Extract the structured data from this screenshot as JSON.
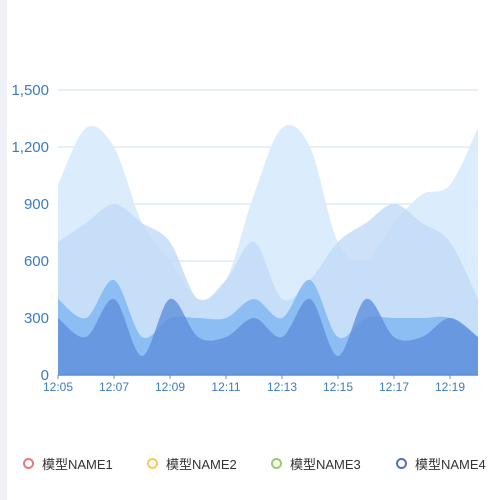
{
  "chart_data": {
    "type": "area",
    "title": "",
    "xlabel": "",
    "ylabel": "",
    "x": [
      "12:05",
      "12:06",
      "12:07",
      "12:08",
      "12:09",
      "12:10",
      "12:11",
      "12:12",
      "12:13",
      "12:14",
      "12:15",
      "12:16",
      "12:17",
      "12:18",
      "12:19",
      "12:20"
    ],
    "x_tick_labels": [
      "12:05",
      "12:07",
      "12:09",
      "12:11",
      "12:13",
      "12:15",
      "12:17",
      "12:19"
    ],
    "y_ticks": [
      0,
      300,
      600,
      900,
      1200,
      1500
    ],
    "y_tick_labels": [
      "0",
      "300",
      "600",
      "900",
      "1,200",
      "1,500"
    ],
    "ylim": [
      0,
      1500
    ],
    "grid": true,
    "legend_position": "bottom",
    "series": [
      {
        "name": "模型NAME1",
        "color": "#e5797f",
        "fill": "#d9ecfc",
        "values": [
          1000,
          1300,
          1200,
          800,
          600,
          400,
          500,
          950,
          1300,
          1200,
          700,
          600,
          800,
          950,
          1000,
          1300
        ]
      },
      {
        "name": "模型NAME2",
        "color": "#f6c85f",
        "fill": "#c1daf6",
        "values": [
          700,
          800,
          900,
          800,
          700,
          400,
          500,
          700,
          400,
          500,
          700,
          800,
          900,
          800,
          700,
          400
        ]
      },
      {
        "name": "模型NAME3",
        "color": "#9bca6a",
        "fill": "#7eb5f1",
        "values": [
          400,
          300,
          500,
          200,
          300,
          300,
          300,
          400,
          300,
          500,
          200,
          300,
          300,
          300,
          300,
          200
        ]
      },
      {
        "name": "模型NAME4",
        "color": "#5470c6",
        "fill": "#5f8fd9",
        "values": [
          300,
          200,
          400,
          100,
          400,
          200,
          200,
          300,
          200,
          400,
          100,
          400,
          200,
          200,
          300,
          200
        ]
      }
    ]
  }
}
